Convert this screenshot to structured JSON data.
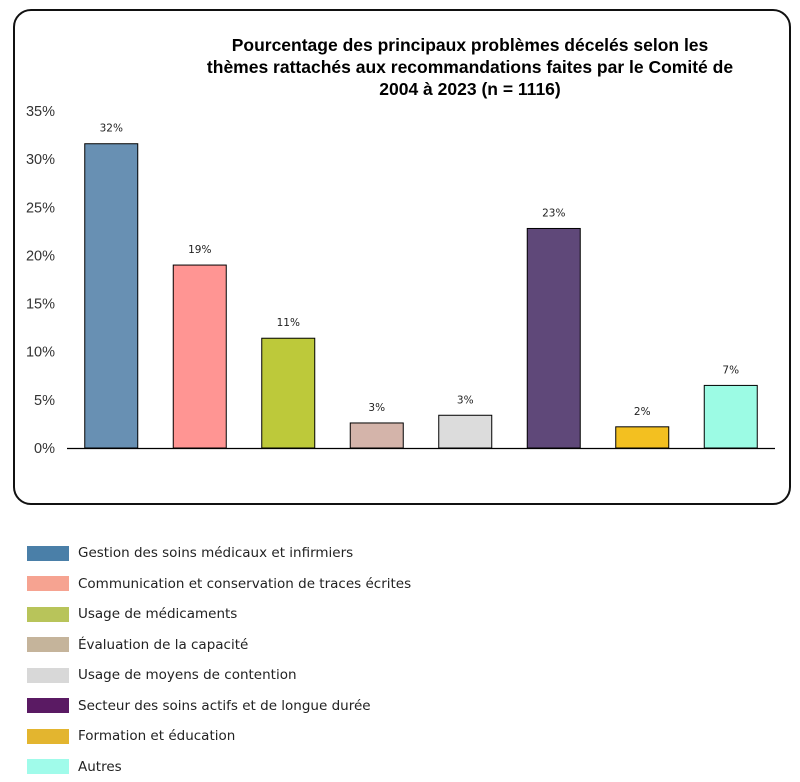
{
  "chart_data": {
    "type": "bar",
    "title": [
      "Pourcentage des principaux problèmes décelés selon les",
      "thèmes rattachés aux recommandations faites par le Comité de",
      "2004 à 2023 (n = 1116)"
    ],
    "xlabel": "",
    "ylabel": "",
    "ylim": [
      0,
      35
    ],
    "yticks": [
      0,
      5,
      10,
      15,
      20,
      25,
      30,
      35
    ],
    "ytick_labels": [
      "0%",
      "5%",
      "10%",
      "15%",
      "20%",
      "25%",
      "30%",
      "35%"
    ],
    "categories": [
      "Gestion des soins médicaux et infirmiers",
      "Communication et conservation de traces écrites",
      "Usage de médicaments",
      "Évaluation de la capacité",
      "Usage de moyens de contention",
      "Secteur des soins actifs et de longue durée",
      "Formation et éducation",
      "Autres"
    ],
    "values": [
      31.6,
      19.0,
      11.4,
      2.6,
      3.4,
      22.8,
      2.2,
      6.5
    ],
    "data_labels": [
      "32%",
      "19%",
      "11%",
      "3%",
      "3%",
      "23%",
      "2%",
      "7%"
    ],
    "bar_colors": [
      "#6890b3",
      "#ff9593",
      "#bdc93a",
      "#d4b4aa",
      "#dcdcdc",
      "#5f4879",
      "#f3c020",
      "#9cfbe4"
    ],
    "legend_colors": [
      "#4a7fa8",
      "#f6a391",
      "#b8c45a",
      "#c5b49b",
      "#d8d8d8",
      "#5a1a63",
      "#e3b52f",
      "#a0fbea"
    ],
    "legend_position": "below"
  }
}
